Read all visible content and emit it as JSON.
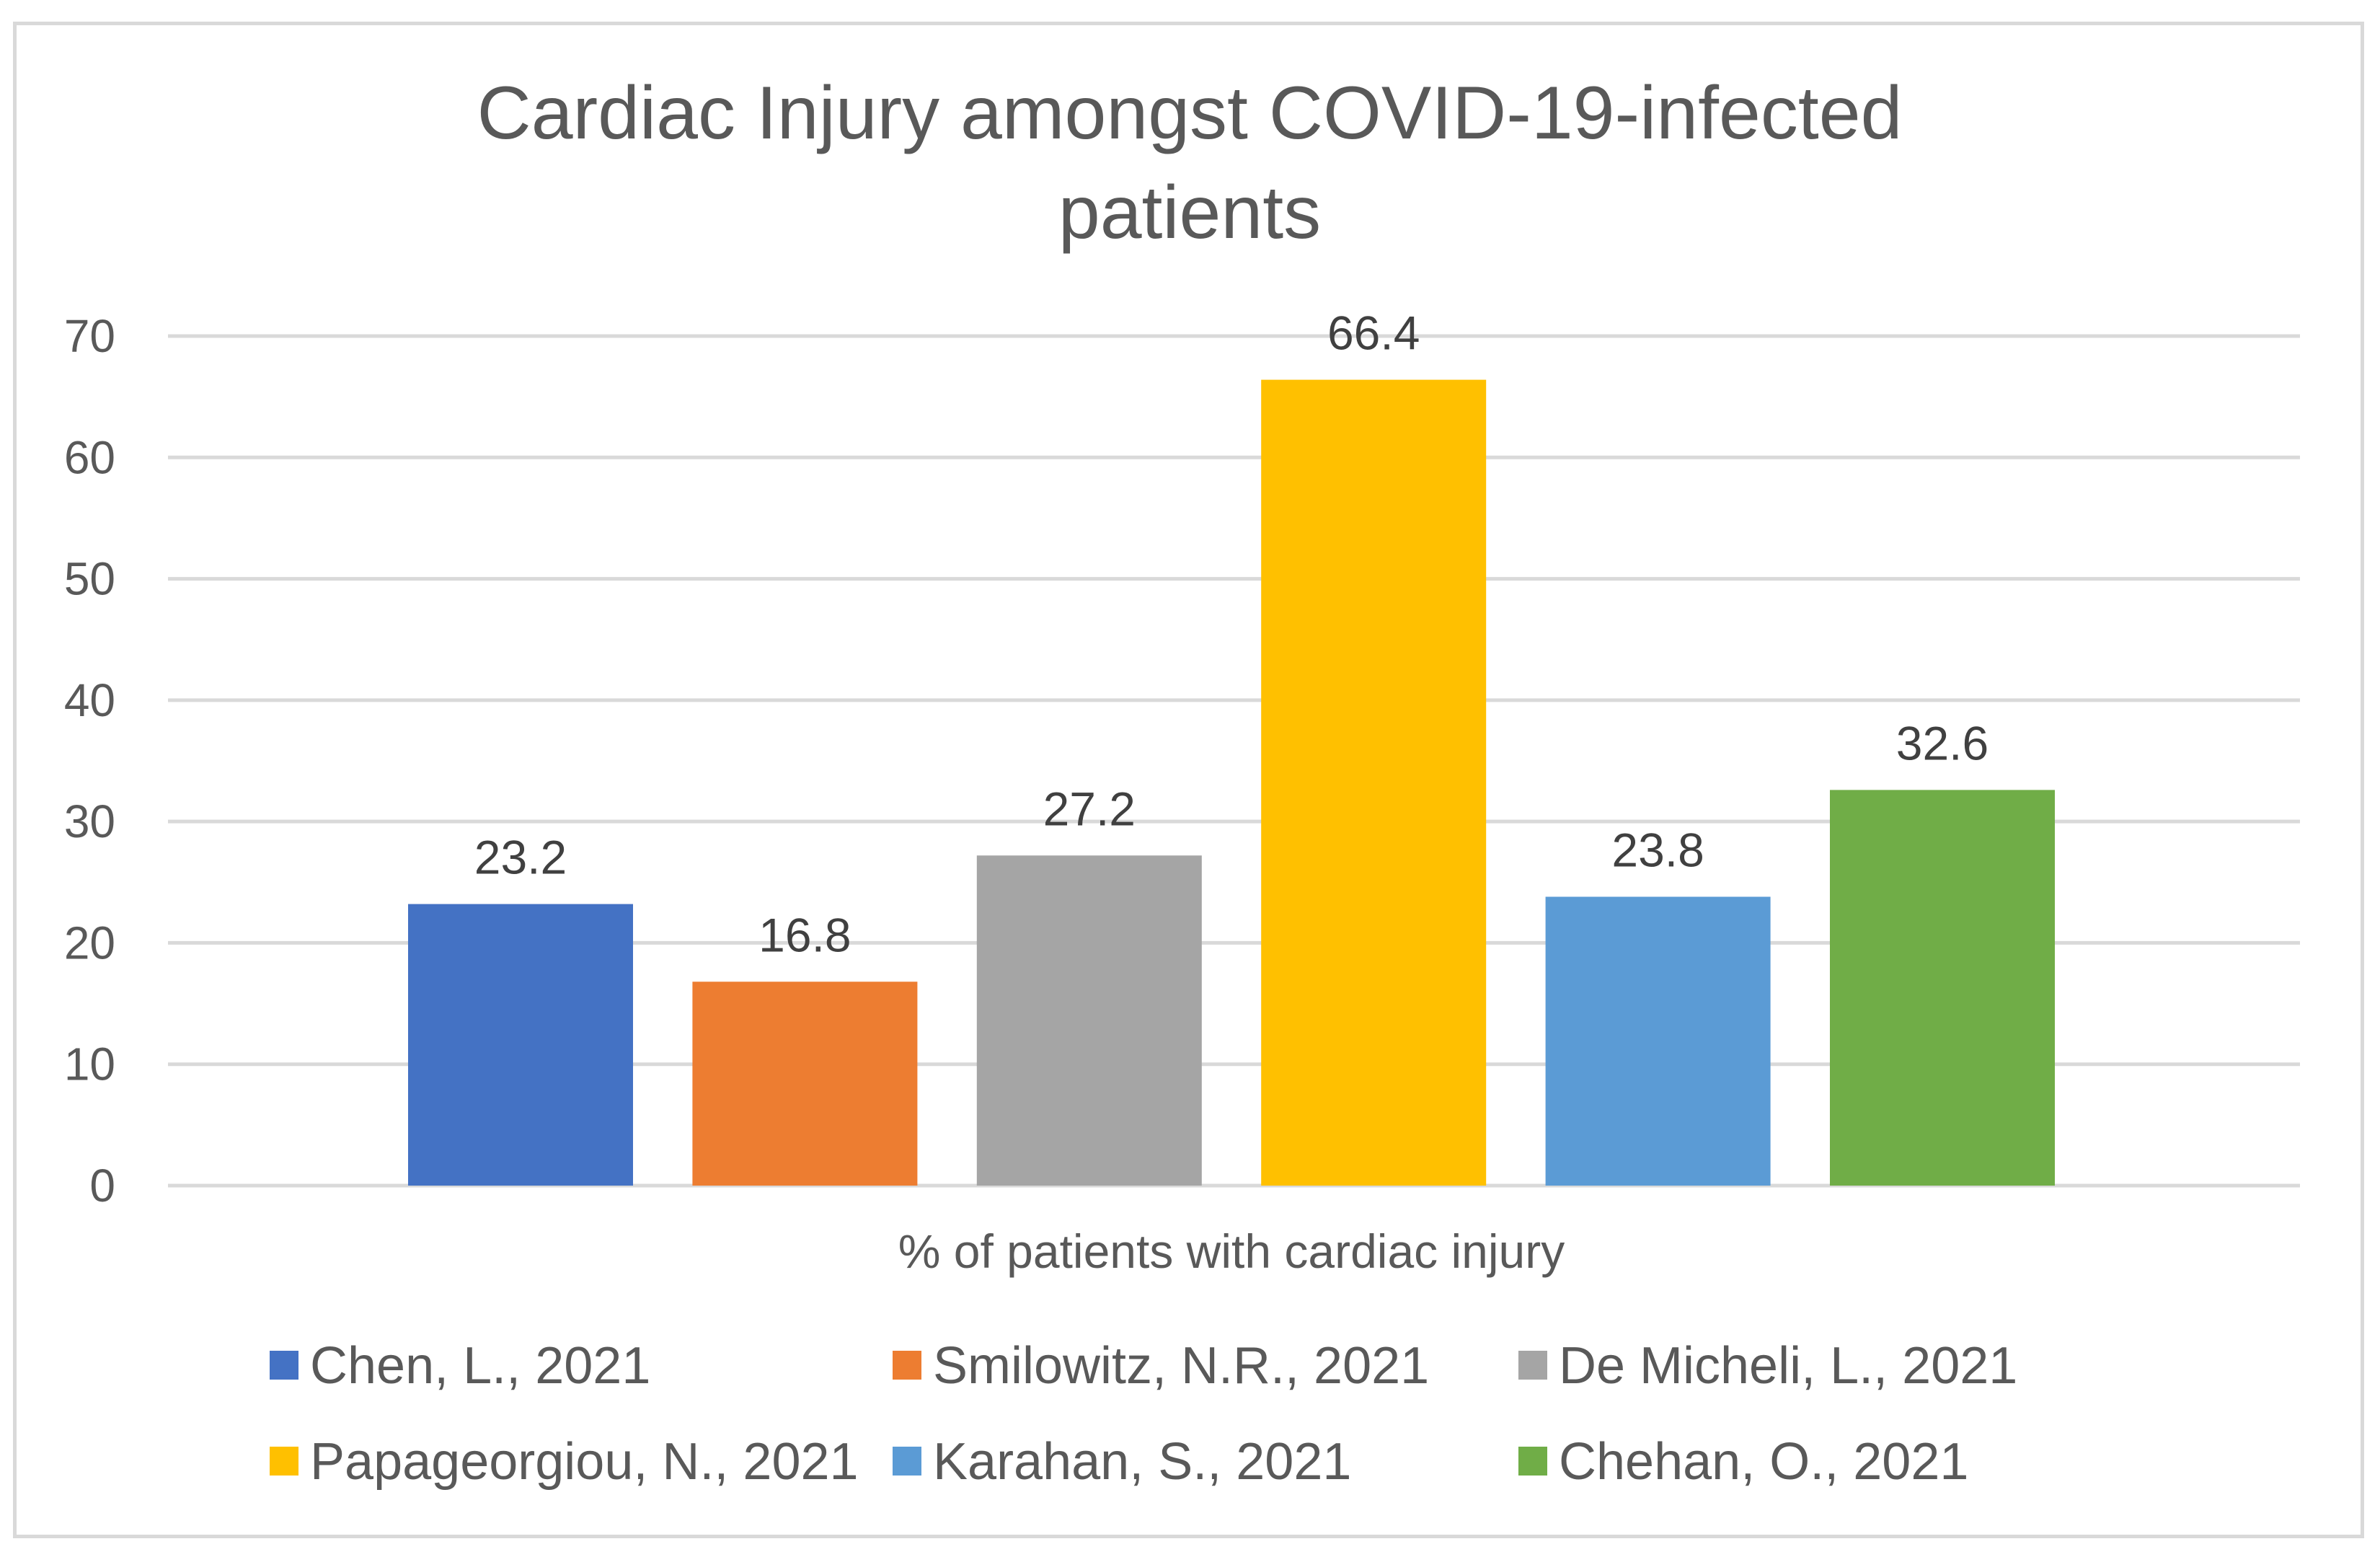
{
  "chart_data": {
    "type": "bar",
    "title_lines": [
      "Cardiac Injury amongst COVID-19-infected",
      "patients"
    ],
    "title": "Cardiac Injury amongst COVID-19-infected patients",
    "xlabel": "% of patients with cardiac injury",
    "ylabel": "",
    "ylim": [
      0,
      70
    ],
    "ytick_step": 10,
    "yticks": [
      0,
      10,
      20,
      30,
      40,
      50,
      60,
      70
    ],
    "grid": true,
    "legend_position": "bottom",
    "categories": [
      "% of patients with cardiac injury"
    ],
    "series": [
      {
        "name": "Chen, L., 2021",
        "values": [
          23.2
        ],
        "label": "23.2",
        "color": "#4472c4"
      },
      {
        "name": "Smilowitz, N.R., 2021",
        "values": [
          16.8
        ],
        "label": "16.8",
        "color": "#ed7d31"
      },
      {
        "name": "De Micheli, L., 2021",
        "values": [
          27.2
        ],
        "label": "27.2",
        "color": "#a5a5a5"
      },
      {
        "name": "Papageorgiou, N., 2021",
        "values": [
          66.4
        ],
        "label": "66.4",
        "color": "#ffc000"
      },
      {
        "name": "Karahan, S., 2021",
        "values": [
          23.8
        ],
        "label": "23.8",
        "color": "#5b9bd5"
      },
      {
        "name": "Chehan, O., 2021",
        "values": [
          32.6
        ],
        "label": "32.6",
        "color": "#70ad47"
      }
    ]
  },
  "colors": {
    "grid": "#d9d9d9",
    "text": "#595959"
  }
}
